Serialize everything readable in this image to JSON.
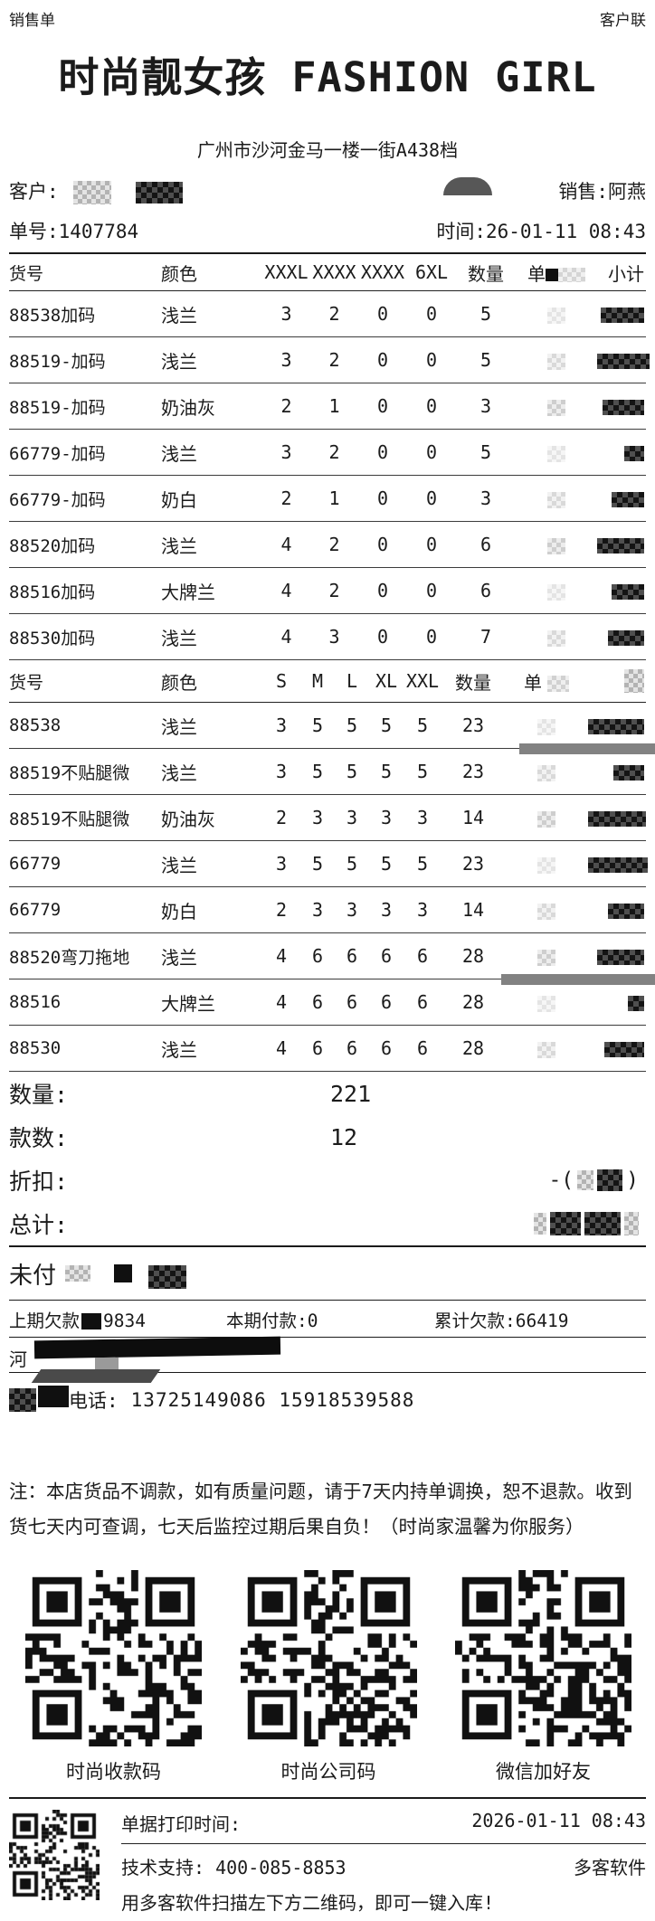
{
  "header": {
    "doc_type": "销售单",
    "copy_label": "客户联",
    "title": "时尚靓女孩 FASHION GIRL",
    "address": "广州市沙河金马一楼一街A438档",
    "customer_label": "客户:",
    "sales": "销售:阿燕",
    "order_no": "单号:1407784",
    "time": "时间:26-01-11 08:43"
  },
  "table1": {
    "col_sku": "货号",
    "col_color": "颜色",
    "size_cols": [
      "XXXL",
      "XXXX",
      "XXXX",
      "6XL"
    ],
    "col_qty": "数量",
    "col_price_partial": "单",
    "col_subtotal": "小计",
    "rows": [
      {
        "sku": "88538加码",
        "color": "浅兰",
        "s": [
          "3",
          "2",
          "0",
          "0"
        ],
        "qty": "5"
      },
      {
        "sku": "88519-加码",
        "color": "浅兰",
        "s": [
          "3",
          "2",
          "0",
          "0"
        ],
        "qty": "5"
      },
      {
        "sku": "88519-加码",
        "color": "奶油灰",
        "s": [
          "2",
          "1",
          "0",
          "0"
        ],
        "qty": "3"
      },
      {
        "sku": "66779-加码",
        "color": "浅兰",
        "s": [
          "3",
          "2",
          "0",
          "0"
        ],
        "qty": "5"
      },
      {
        "sku": "66779-加码",
        "color": "奶白",
        "s": [
          "2",
          "1",
          "0",
          "0"
        ],
        "qty": "3"
      },
      {
        "sku": "88520加码",
        "color": "浅兰",
        "s": [
          "4",
          "2",
          "0",
          "0"
        ],
        "qty": "6"
      },
      {
        "sku": "88516加码",
        "color": "大牌兰",
        "s": [
          "4",
          "2",
          "0",
          "0"
        ],
        "qty": "6"
      },
      {
        "sku": "88530加码",
        "color": "浅兰",
        "s": [
          "4",
          "3",
          "0",
          "0"
        ],
        "qty": "7"
      }
    ]
  },
  "table2": {
    "col_sku": "货号",
    "col_color": "颜色",
    "size_cols": [
      "S",
      "M",
      "L",
      "XL",
      "XXL"
    ],
    "col_qty": "数量",
    "col_price_partial": "单",
    "rows": [
      {
        "sku": "88538",
        "color": "浅兰",
        "s": [
          "3",
          "5",
          "5",
          "5",
          "5"
        ],
        "qty": "23"
      },
      {
        "sku": "88519不贴腿微",
        "color": "浅兰",
        "s": [
          "3",
          "5",
          "5",
          "5",
          "5"
        ],
        "qty": "23"
      },
      {
        "sku": "88519不贴腿微",
        "color": "奶油灰",
        "s": [
          "2",
          "3",
          "3",
          "3",
          "3"
        ],
        "qty": "14"
      },
      {
        "sku": "66779",
        "color": "浅兰",
        "s": [
          "3",
          "5",
          "5",
          "5",
          "5"
        ],
        "qty": "23"
      },
      {
        "sku": "66779",
        "color": "奶白",
        "s": [
          "2",
          "3",
          "3",
          "3",
          "3"
        ],
        "qty": "14"
      },
      {
        "sku": "88520弯刀拖地",
        "color": "浅兰",
        "s": [
          "4",
          "6",
          "6",
          "6",
          "6"
        ],
        "qty": "28"
      },
      {
        "sku": "88516",
        "color": "大牌兰",
        "s": [
          "4",
          "6",
          "6",
          "6",
          "6"
        ],
        "qty": "28"
      },
      {
        "sku": "88530",
        "color": "浅兰",
        "s": [
          "4",
          "6",
          "6",
          "6",
          "6"
        ],
        "qty": "28"
      }
    ]
  },
  "summary": {
    "qty_label": "数量:",
    "qty_value": "221",
    "styles_label": "款数:",
    "styles_value": "12",
    "discount_label": "折扣:",
    "discount_prefix": "-(",
    "discount_suffix": ")",
    "total_label": "总计:",
    "unpaid_label": "未付"
  },
  "balance": {
    "prev_label": "上期欠款",
    "prev_visible": "9834",
    "current": "本期付款:0",
    "cumulative": "累计欠款:66419",
    "bank_partial": "河"
  },
  "contact": {
    "phone_label": "电话:",
    "phones": "13725149086   15918539588"
  },
  "note": {
    "text": "注：本店货品不调款，如有质量问题，请于7天内持单调换，恕不退款。收到货七天内可查调，七天后监控过期后果自负！（时尚家温馨为你服务）"
  },
  "qr": {
    "labels": [
      "时尚收款码",
      "时尚公司码",
      "微信加好友"
    ]
  },
  "footer": {
    "print_label": "单据打印时间:",
    "print_value": "2026-01-11 08:43",
    "support": "技术支持: 400-085-8853",
    "vendor": "多客软件",
    "instruction": "用多客软件扫描左下方二维码，即可一键入库!"
  }
}
